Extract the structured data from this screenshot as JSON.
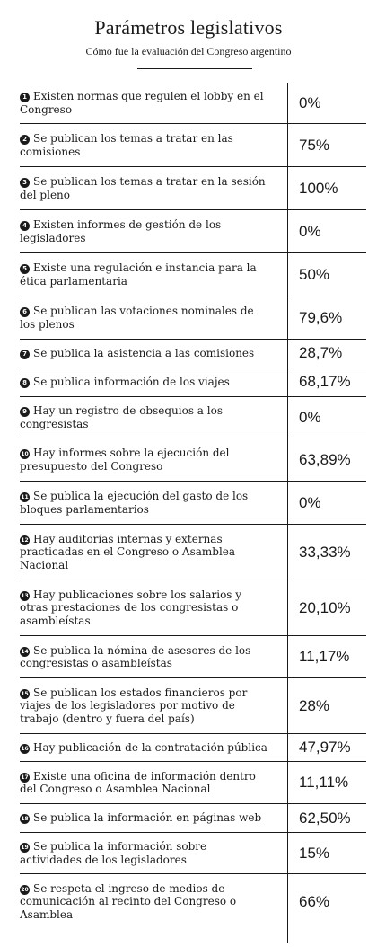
{
  "header": {
    "title": "Parámetros legislativos",
    "subtitle": "Cómo fue la evaluación del Congreso argentino"
  },
  "rows": [
    {
      "num": "1",
      "text": "Existen normas que regulen el lobby en el Congreso",
      "value": "0%"
    },
    {
      "num": "2",
      "text": "Se publican los temas a tratar en las comisiones",
      "value": "75%"
    },
    {
      "num": "3",
      "text": "Se publican los temas a tratar en la sesión del pleno",
      "value": "100%"
    },
    {
      "num": "4",
      "text": "Existen informes de gestión de los legisladores",
      "value": "0%"
    },
    {
      "num": "5",
      "text": "Existe una regulación e instancia para la ética parlamentaria",
      "value": "50%"
    },
    {
      "num": "6",
      "text": "Se publican las votaciones nominales de los plenos",
      "value": "79,6%"
    },
    {
      "num": "7",
      "text": "Se publica la asistencia a las comisiones",
      "value": "28,7%"
    },
    {
      "num": "8",
      "text": "Se publica información de los viajes",
      "value": "68,17%"
    },
    {
      "num": "9",
      "text": "Hay un registro de obsequios a los congresistas",
      "value": "0%"
    },
    {
      "num": "10",
      "text": "Hay informes sobre la ejecución del presupuesto del Congreso",
      "value": "63,89%"
    },
    {
      "num": "11",
      "text": "Se publica la ejecución del gasto de los bloques parlamentarios",
      "value": "0%"
    },
    {
      "num": "12",
      "text": "Hay auditorías internas y externas practicadas en el Congreso o Asamblea Nacional",
      "value": "33,33%"
    },
    {
      "num": "13",
      "text": "Hay publicaciones sobre los salarios y otras prestaciones de los congresistas o asambleístas",
      "value": "20,10%"
    },
    {
      "num": "14",
      "text": "Se publica la nómina de asesores de los congresistas o asambleístas",
      "value": "11,17%"
    },
    {
      "num": "15",
      "text": "Se publican los estados financieros por viajes de los legisladores por motivo de trabajo (dentro y fuera del país)",
      "value": "28%"
    },
    {
      "num": "16",
      "text": "Hay publicación de la contratación pública",
      "value": "47,97%"
    },
    {
      "num": "17",
      "text": "Existe una oficina de información dentro del Congreso o Asamblea Nacional",
      "value": "11,11%"
    },
    {
      "num": "18",
      "text": "Se publica la información en páginas web",
      "value": "62,50%"
    },
    {
      "num": "19",
      "text": "Se publica la información sobre actividades de los legisladores",
      "value": "15%"
    },
    {
      "num": "20",
      "text": "Se respeta el ingreso de medios de comunicación al recinto del Congreso o Asamblea",
      "value": "66%"
    }
  ]
}
